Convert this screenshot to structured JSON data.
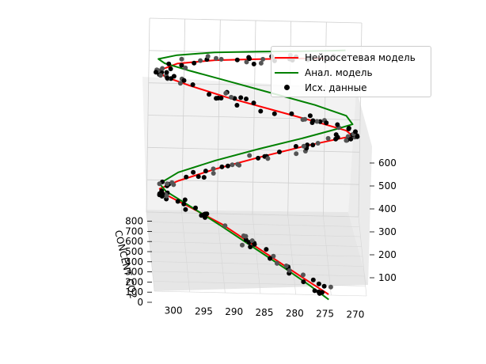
{
  "chart_data": {
    "type": "scatter3d",
    "title": "",
    "xlabel": "",
    "ylabel": "CONCENT CO2",
    "zlabel": "",
    "x_ticks": [
      "300",
      "295",
      "290",
      "285",
      "280",
      "275",
      "270"
    ],
    "y_ticks": [
      "0",
      "100",
      "200",
      "300",
      "400",
      "500",
      "600",
      "700",
      "800"
    ],
    "z_ticks": [
      "100",
      "200",
      "300",
      "400",
      "500",
      "600"
    ],
    "xlim": [
      268,
      302
    ],
    "ylim": [
      0,
      800
    ],
    "zlim": [
      50,
      650
    ],
    "legend": {
      "placement": "top-right",
      "entries": [
        {
          "label": "Нейросетевая модель",
          "color": "#ff0000",
          "kind": "line"
        },
        {
          "label": "Анал. модель",
          "color": "#008000",
          "kind": "line"
        },
        {
          "label": "Исх. данные",
          "color": "#000000",
          "kind": "dot"
        }
      ]
    },
    "series": [
      {
        "name": "Нейросетевая модель",
        "color": "#ff0000",
        "kind": "line",
        "points": [
          [
            274,
            40,
            40
          ],
          [
            277,
            60,
            70
          ],
          [
            281,
            90,
            110
          ],
          [
            286,
            130,
            160
          ],
          [
            291,
            170,
            210
          ],
          [
            296,
            200,
            250
          ],
          [
            300,
            210,
            285
          ],
          [
            301,
            220,
            300
          ],
          [
            298,
            240,
            320
          ],
          [
            292,
            270,
            350
          ],
          [
            285,
            300,
            380
          ],
          [
            278,
            320,
            410
          ],
          [
            273,
            330,
            430
          ],
          [
            270,
            340,
            440
          ],
          [
            271,
            360,
            450
          ],
          [
            276,
            380,
            470
          ],
          [
            283,
            410,
            495
          ],
          [
            290,
            440,
            520
          ],
          [
            296,
            470,
            545
          ],
          [
            300,
            490,
            565
          ],
          [
            301,
            500,
            580
          ],
          [
            298,
            510,
            600
          ],
          [
            292,
            520,
            610
          ],
          [
            285,
            525,
            615
          ],
          [
            278,
            525,
            620
          ],
          [
            273,
            525,
            622
          ]
        ]
      },
      {
        "name": "Анал. модель",
        "color": "#008000",
        "kind": "line",
        "points": [
          [
            274,
            20,
            30
          ],
          [
            277,
            60,
            60
          ],
          [
            281,
            100,
            100
          ],
          [
            286,
            140,
            150
          ],
          [
            291,
            180,
            200
          ],
          [
            296,
            210,
            250
          ],
          [
            300,
            230,
            290
          ],
          [
            301,
            240,
            310
          ],
          [
            298,
            260,
            340
          ],
          [
            292,
            290,
            370
          ],
          [
            285,
            320,
            400
          ],
          [
            278,
            340,
            430
          ],
          [
            273,
            350,
            455
          ],
          [
            270,
            360,
            470
          ],
          [
            271,
            380,
            490
          ],
          [
            276,
            400,
            515
          ],
          [
            283,
            430,
            540
          ],
          [
            290,
            460,
            565
          ],
          [
            296,
            490,
            585
          ],
          [
            300,
            510,
            600
          ],
          [
            301,
            520,
            610
          ],
          [
            298,
            530,
            620
          ],
          [
            292,
            540,
            628
          ],
          [
            285,
            545,
            632
          ],
          [
            278,
            545,
            636
          ],
          [
            273,
            545,
            640
          ],
          [
            271,
            545,
            642
          ]
        ]
      }
    ]
  }
}
